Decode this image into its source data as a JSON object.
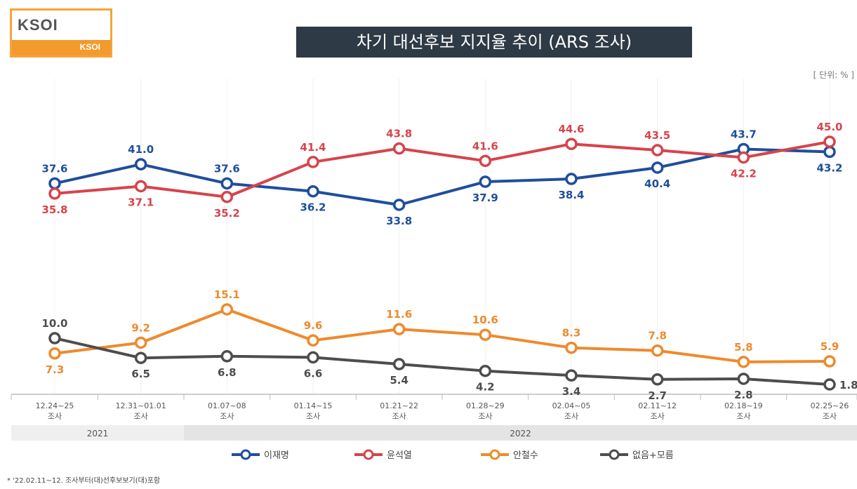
{
  "logo": {
    "name": "KSOI",
    "sub": "KSOI"
  },
  "title": "차기 대선후보 지지율 추이 (ARS 조사)",
  "unit": "[ 단위: % ]",
  "footnote": "* '22.02.11~12. 조사부터(대)선후보보기(대)포함",
  "chart_data": {
    "type": "line",
    "categories": [
      "12.24~25",
      "12.31~01.01",
      "01.07~08",
      "01.14~15",
      "01.21~22",
      "01.28~29",
      "02.04~05",
      "02.11~12",
      "02.18~19",
      "02.25~26"
    ],
    "category_sublabel": "조사",
    "year_bands": [
      {
        "label": "2021",
        "from": 0,
        "to": 1
      },
      {
        "label": "2022",
        "from": 2,
        "to": 9
      }
    ],
    "series": [
      {
        "name": "이재명",
        "color": "#1f4e9c",
        "values": [
          37.6,
          41.0,
          37.6,
          36.2,
          33.8,
          37.9,
          38.4,
          40.4,
          43.7,
          43.2
        ],
        "label_pos": [
          "above",
          "above",
          "above",
          "below",
          "below",
          "below",
          "below",
          "below",
          "above",
          "below"
        ]
      },
      {
        "name": "윤석열",
        "color": "#d6444c",
        "values": [
          35.8,
          37.1,
          35.2,
          41.4,
          43.8,
          41.6,
          44.6,
          43.5,
          42.2,
          45.0
        ],
        "label_pos": [
          "below",
          "below",
          "below",
          "above",
          "above",
          "above",
          "above",
          "above",
          "below",
          "above"
        ]
      },
      {
        "name": "안철수",
        "color": "#ee8a2d",
        "values": [
          7.3,
          9.2,
          15.1,
          9.6,
          11.6,
          10.6,
          8.3,
          7.8,
          5.8,
          5.9
        ],
        "label_pos": [
          "below",
          "above",
          "above",
          "above",
          "above",
          "above",
          "above",
          "above",
          "above",
          "above"
        ]
      },
      {
        "name": "없음+모름",
        "color": "#4d4d4d",
        "values": [
          10.0,
          6.5,
          6.8,
          6.6,
          5.4,
          4.2,
          3.4,
          2.7,
          2.8,
          1.8
        ],
        "label_pos": [
          "above",
          "below",
          "below",
          "below",
          "below",
          "below",
          "below",
          "below",
          "below",
          "right"
        ]
      }
    ],
    "ylim": [
      0,
      50
    ],
    "grid": false,
    "legend_position": "bottom"
  }
}
